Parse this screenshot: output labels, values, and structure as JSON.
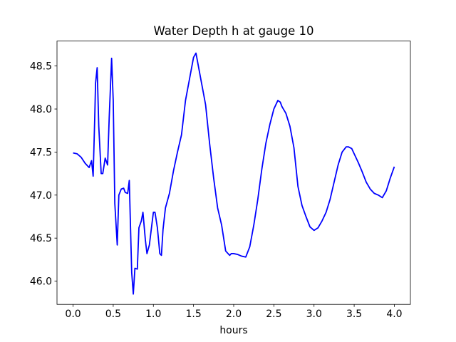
{
  "chart_data": {
    "type": "line",
    "title": "Water Depth h at gauge 10",
    "xlabel": "hours",
    "ylabel": "",
    "xlim": [
      -0.2,
      4.2
    ],
    "ylim": [
      45.73,
      48.79
    ],
    "xticks": [
      0.0,
      0.5,
      1.0,
      1.5,
      2.0,
      2.5,
      3.0,
      3.5,
      4.0
    ],
    "xtick_labels": [
      "0.0",
      "0.5",
      "1.0",
      "1.5",
      "2.0",
      "2.5",
      "3.0",
      "3.5",
      "4.0"
    ],
    "yticks": [
      46.0,
      46.5,
      47.0,
      47.5,
      48.0,
      48.5
    ],
    "ytick_labels": [
      "46.0",
      "46.5",
      "47.0",
      "47.5",
      "48.0",
      "48.5"
    ],
    "grid": false,
    "legend": "none",
    "series": [
      {
        "color": "#0000ff",
        "x": [
          0.0,
          0.05,
          0.1,
          0.15,
          0.2,
          0.23,
          0.25,
          0.27,
          0.28,
          0.3,
          0.32,
          0.35,
          0.37,
          0.4,
          0.43,
          0.45,
          0.48,
          0.5,
          0.52,
          0.55,
          0.57,
          0.6,
          0.63,
          0.65,
          0.68,
          0.7,
          0.73,
          0.75,
          0.77,
          0.8,
          0.82,
          0.85,
          0.87,
          0.9,
          0.92,
          0.95,
          0.98,
          1.0,
          1.02,
          1.05,
          1.08,
          1.1,
          1.12,
          1.15,
          1.2,
          1.25,
          1.3,
          1.35,
          1.4,
          1.45,
          1.5,
          1.53,
          1.55,
          1.6,
          1.65,
          1.7,
          1.75,
          1.8,
          1.85,
          1.9,
          1.95,
          1.97,
          2.0,
          2.05,
          2.1,
          2.15,
          2.2,
          2.25,
          2.3,
          2.35,
          2.4,
          2.45,
          2.5,
          2.55,
          2.58,
          2.6,
          2.65,
          2.7,
          2.75,
          2.8,
          2.85,
          2.9,
          2.95,
          3.0,
          3.05,
          3.1,
          3.15,
          3.2,
          3.25,
          3.3,
          3.35,
          3.4,
          3.43,
          3.47,
          3.5,
          3.55,
          3.6,
          3.65,
          3.7,
          3.75,
          3.8,
          3.85,
          3.9,
          3.95,
          4.0
        ],
        "y": [
          47.49,
          47.48,
          47.44,
          47.37,
          47.32,
          47.4,
          47.22,
          47.9,
          48.3,
          48.48,
          47.8,
          47.25,
          47.25,
          47.43,
          47.35,
          47.9,
          48.59,
          48.1,
          46.9,
          46.42,
          47.0,
          47.07,
          47.08,
          47.03,
          47.02,
          47.17,
          46.1,
          45.85,
          46.15,
          46.14,
          46.62,
          46.7,
          46.8,
          46.48,
          46.32,
          46.42,
          46.65,
          46.8,
          46.8,
          46.62,
          46.32,
          46.3,
          46.6,
          46.85,
          47.02,
          47.28,
          47.5,
          47.7,
          48.1,
          48.35,
          48.6,
          48.65,
          48.55,
          48.3,
          48.05,
          47.6,
          47.2,
          46.85,
          46.65,
          46.35,
          46.3,
          46.32,
          46.32,
          46.31,
          46.29,
          46.28,
          46.4,
          46.65,
          46.95,
          47.3,
          47.6,
          47.82,
          48.0,
          48.1,
          48.08,
          48.03,
          47.95,
          47.8,
          47.55,
          47.1,
          46.88,
          46.75,
          46.63,
          46.59,
          46.62,
          46.7,
          46.8,
          46.95,
          47.15,
          47.35,
          47.5,
          47.56,
          47.56,
          47.54,
          47.48,
          47.38,
          47.27,
          47.15,
          47.07,
          47.02,
          47.0,
          46.97,
          47.05,
          47.2,
          47.33
        ]
      }
    ]
  }
}
